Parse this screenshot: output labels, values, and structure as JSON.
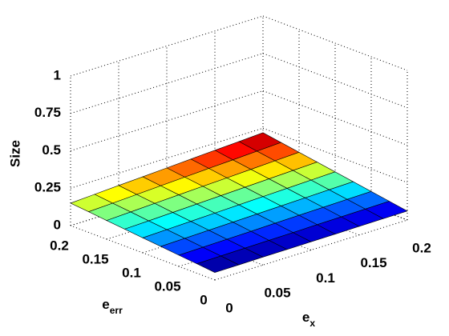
{
  "chart_data": {
    "type": "surface",
    "xlabel": {
      "base": "e",
      "sub": "x"
    },
    "ylabel": {
      "base": "e",
      "sub": "err"
    },
    "zlabel": "Size",
    "x": [
      0,
      0.025,
      0.05,
      0.075,
      0.1,
      0.125,
      0.15,
      0.175,
      0.2
    ],
    "y": [
      0,
      0.025,
      0.05,
      0.075,
      0.1,
      0.125,
      0.15,
      0.175,
      0.2
    ],
    "z": [
      [
        0.05,
        0.051,
        0.053,
        0.054,
        0.055,
        0.056,
        0.058,
        0.059,
        0.06
      ],
      [
        0.063,
        0.065,
        0.067,
        0.069,
        0.071,
        0.074,
        0.076,
        0.078,
        0.08
      ],
      [
        0.075,
        0.078,
        0.081,
        0.084,
        0.088,
        0.091,
        0.094,
        0.097,
        0.1
      ],
      [
        0.088,
        0.092,
        0.096,
        0.1,
        0.104,
        0.108,
        0.112,
        0.116,
        0.12
      ],
      [
        0.1,
        0.105,
        0.11,
        0.115,
        0.12,
        0.125,
        0.13,
        0.135,
        0.14
      ],
      [
        0.113,
        0.118,
        0.124,
        0.13,
        0.136,
        0.142,
        0.148,
        0.154,
        0.16
      ],
      [
        0.125,
        0.132,
        0.139,
        0.146,
        0.153,
        0.159,
        0.166,
        0.173,
        0.18
      ],
      [
        0.138,
        0.145,
        0.153,
        0.161,
        0.169,
        0.177,
        0.184,
        0.192,
        0.2
      ],
      [
        0.15,
        0.159,
        0.168,
        0.176,
        0.185,
        0.194,
        0.203,
        0.211,
        0.22
      ]
    ],
    "xlim": [
      0,
      0.2
    ],
    "xticks": [
      0,
      0.05,
      0.1,
      0.15,
      0.2
    ],
    "ylim": [
      0,
      0.2
    ],
    "yticks": [
      0,
      0.05,
      0.1,
      0.15,
      0.2
    ],
    "zlim": [
      0,
      1
    ],
    "zticks": [
      0,
      0.25,
      0.5,
      0.75,
      1
    ],
    "colormap": "jet",
    "grid": true
  }
}
